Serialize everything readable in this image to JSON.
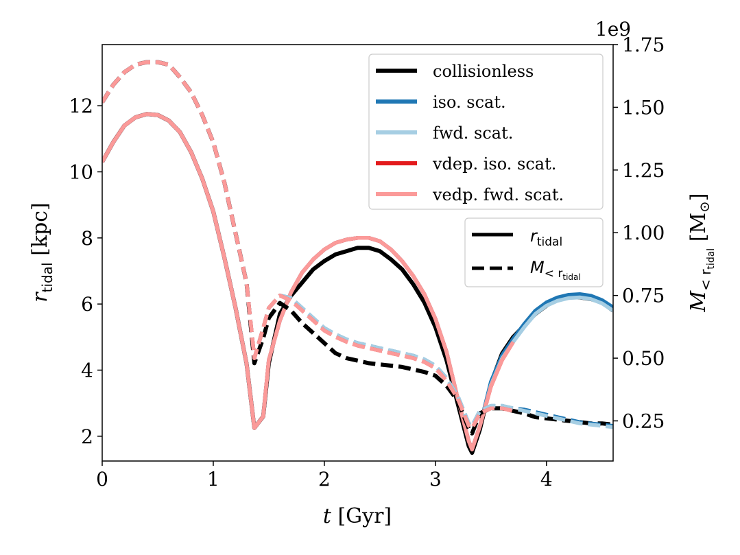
{
  "chart_data": {
    "type": "line",
    "x": [
      0,
      0.1,
      0.2,
      0.3,
      0.4,
      0.5,
      0.6,
      0.7,
      0.8,
      0.9,
      1.0,
      1.1,
      1.2,
      1.3,
      1.37,
      1.45,
      1.5,
      1.6,
      1.7,
      1.8,
      1.9,
      2.0,
      2.1,
      2.2,
      2.3,
      2.4,
      2.5,
      2.6,
      2.7,
      2.8,
      2.9,
      3.0,
      3.1,
      3.2,
      3.3,
      3.33,
      3.4,
      3.5,
      3.6,
      3.7,
      3.8,
      3.9,
      4.0,
      4.1,
      4.2,
      4.3,
      4.4,
      4.5,
      4.6
    ],
    "x_label_var": "t",
    "x_label_unit": "[Gyr]",
    "xlim": [
      0,
      4.6
    ],
    "x_ticks": [
      "0",
      "1",
      "2",
      "3",
      "4"
    ],
    "left_axis": {
      "label_var": "r",
      "label_sub": "tidal",
      "label_unit": "[kpc]",
      "ylim": [
        1.25,
        13.85
      ],
      "ticks": [
        "2",
        "4",
        "6",
        "8",
        "10",
        "12"
      ]
    },
    "right_axis": {
      "label_var": "M",
      "label_sub": "< r",
      "label_subsub": "tidal",
      "label_unit": "[M",
      "label_sun": "⊙",
      "label_close": "]",
      "ylim": [
        0.09,
        1.75
      ],
      "ticks": [
        "0.25",
        "0.50",
        "0.75",
        "1.00",
        "1.25",
        "1.50",
        "1.75"
      ],
      "offset_text": "1e9"
    },
    "series": [
      {
        "name": "collisionless",
        "color": "#000000",
        "axis": "left",
        "style": "solid",
        "values": [
          10.3,
          10.9,
          11.4,
          11.65,
          11.75,
          11.72,
          11.55,
          11.2,
          10.6,
          9.8,
          8.8,
          7.4,
          5.9,
          4.2,
          2.25,
          2.6,
          4.2,
          5.7,
          6.25,
          6.65,
          7.05,
          7.3,
          7.5,
          7.6,
          7.7,
          7.7,
          7.6,
          7.35,
          7.05,
          6.6,
          6.05,
          5.3,
          4.3,
          3.0,
          1.7,
          1.5,
          2.2,
          3.6,
          4.5,
          5.0,
          5.35,
          5.7,
          5.95,
          6.15,
          6.2,
          6.2,
          6.15,
          6.05,
          5.8
        ]
      },
      {
        "name": "iso. scat.",
        "color": "#1f77b4",
        "axis": "left",
        "style": "solid",
        "values": [
          10.3,
          10.9,
          11.4,
          11.65,
          11.75,
          11.72,
          11.55,
          11.2,
          10.6,
          9.8,
          8.8,
          7.4,
          5.9,
          4.2,
          2.25,
          2.6,
          4.3,
          5.5,
          6.35,
          6.95,
          7.35,
          7.65,
          7.85,
          7.95,
          8.0,
          8.0,
          7.9,
          7.65,
          7.3,
          6.85,
          6.3,
          5.55,
          4.55,
          3.15,
          1.85,
          1.6,
          2.3,
          3.65,
          4.45,
          4.95,
          5.4,
          5.8,
          6.05,
          6.2,
          6.28,
          6.3,
          6.25,
          6.12,
          5.9
        ]
      },
      {
        "name": "fwd. scat.",
        "color": "#a6cee3",
        "axis": "left",
        "style": "solid",
        "values": [
          10.3,
          10.9,
          11.4,
          11.65,
          11.75,
          11.72,
          11.55,
          11.2,
          10.6,
          9.8,
          8.8,
          7.4,
          5.9,
          4.2,
          2.25,
          2.6,
          4.3,
          5.5,
          6.35,
          6.95,
          7.35,
          7.65,
          7.85,
          7.95,
          8.0,
          8.0,
          7.9,
          7.65,
          7.3,
          6.85,
          6.3,
          5.55,
          4.55,
          3.15,
          1.85,
          1.6,
          2.3,
          3.55,
          4.35,
          4.85,
          5.3,
          5.7,
          5.95,
          6.1,
          6.18,
          6.2,
          6.15,
          6.02,
          5.8
        ]
      },
      {
        "name": "vdep. iso. scat.",
        "color": "#e31a1c",
        "axis": "left",
        "style": "solid",
        "values": [
          10.3,
          10.9,
          11.4,
          11.65,
          11.75,
          11.72,
          11.55,
          11.2,
          10.6,
          9.8,
          8.8,
          7.4,
          5.9,
          4.2,
          2.25,
          2.6,
          4.3,
          5.5,
          6.35,
          6.95,
          7.35,
          7.65,
          7.85,
          7.95,
          8.0,
          8.0,
          7.9,
          7.65,
          7.3,
          6.85,
          6.3,
          5.55,
          4.55,
          3.15,
          1.85,
          1.6,
          2.3,
          3.5,
          4.3,
          4.85,
          null,
          null,
          null,
          null,
          null,
          null,
          null,
          null,
          null
        ]
      },
      {
        "name": "vedp. fwd. scat.",
        "color": "#fb9a99",
        "axis": "left",
        "style": "solid",
        "values": [
          10.3,
          10.9,
          11.4,
          11.65,
          11.75,
          11.72,
          11.55,
          11.2,
          10.6,
          9.8,
          8.8,
          7.4,
          5.9,
          4.2,
          2.25,
          2.6,
          4.3,
          5.5,
          6.35,
          6.95,
          7.35,
          7.65,
          7.85,
          7.95,
          8.0,
          8.0,
          7.9,
          7.65,
          7.3,
          6.85,
          6.3,
          5.55,
          4.55,
          3.15,
          1.85,
          1.6,
          2.3,
          3.5,
          4.3,
          4.85,
          null,
          null,
          null,
          null,
          null,
          null,
          null,
          null,
          null
        ]
      },
      {
        "name": "collisionless",
        "color": "#000000",
        "axis": "right",
        "style": "dashed",
        "values": [
          1.52,
          1.59,
          1.64,
          1.67,
          1.68,
          1.68,
          1.67,
          1.62,
          1.56,
          1.47,
          1.36,
          1.2,
          1.0,
          0.8,
          0.48,
          0.58,
          0.66,
          0.72,
          0.69,
          0.64,
          0.6,
          0.56,
          0.52,
          0.5,
          0.49,
          0.48,
          0.475,
          0.47,
          0.465,
          0.455,
          0.445,
          0.43,
          0.39,
          0.33,
          0.22,
          0.2,
          0.28,
          0.3,
          0.3,
          0.29,
          0.28,
          0.265,
          0.26,
          0.255,
          0.25,
          0.245,
          0.24,
          0.24,
          0.235
        ]
      },
      {
        "name": "iso. scat.",
        "color": "#1f77b4",
        "axis": "right",
        "style": "dashed",
        "values": [
          1.52,
          1.59,
          1.64,
          1.67,
          1.68,
          1.68,
          1.67,
          1.62,
          1.56,
          1.47,
          1.36,
          1.2,
          1.0,
          0.8,
          0.5,
          0.62,
          0.7,
          0.75,
          0.74,
          0.7,
          0.66,
          0.62,
          0.595,
          0.575,
          0.56,
          0.55,
          0.54,
          0.53,
          0.52,
          0.51,
          0.495,
          0.47,
          0.42,
          0.35,
          0.24,
          0.23,
          0.29,
          0.31,
          0.31,
          0.3,
          0.295,
          0.285,
          0.275,
          0.265,
          0.255,
          0.245,
          0.24,
          0.235,
          0.23
        ]
      },
      {
        "name": "fwd. scat.",
        "color": "#a6cee3",
        "axis": "right",
        "style": "dashed",
        "values": [
          1.52,
          1.59,
          1.64,
          1.67,
          1.68,
          1.68,
          1.67,
          1.62,
          1.56,
          1.47,
          1.36,
          1.2,
          1.0,
          0.8,
          0.5,
          0.62,
          0.7,
          0.75,
          0.74,
          0.7,
          0.66,
          0.62,
          0.595,
          0.575,
          0.56,
          0.55,
          0.54,
          0.53,
          0.52,
          0.51,
          0.495,
          0.47,
          0.42,
          0.35,
          0.24,
          0.23,
          0.29,
          0.31,
          0.31,
          0.3,
          0.29,
          0.28,
          0.27,
          0.26,
          0.25,
          0.24,
          0.235,
          0.23,
          0.225
        ]
      },
      {
        "name": "vdep. iso. scat.",
        "color": "#e31a1c",
        "axis": "right",
        "style": "dashed",
        "values": [
          1.52,
          1.59,
          1.64,
          1.67,
          1.68,
          1.68,
          1.67,
          1.62,
          1.56,
          1.47,
          1.36,
          1.2,
          1.0,
          0.8,
          0.5,
          0.62,
          0.7,
          0.75,
          0.73,
          0.69,
          0.65,
          0.61,
          0.585,
          0.565,
          0.55,
          0.54,
          0.53,
          0.52,
          0.51,
          0.5,
          0.485,
          0.46,
          0.41,
          0.34,
          0.23,
          0.22,
          0.28,
          0.3,
          0.3,
          0.29,
          null,
          null,
          null,
          null,
          null,
          null,
          null,
          null,
          null
        ]
      },
      {
        "name": "vedp. fwd. scat.",
        "color": "#fb9a99",
        "axis": "right",
        "style": "dashed",
        "values": [
          1.52,
          1.59,
          1.64,
          1.67,
          1.68,
          1.68,
          1.67,
          1.62,
          1.56,
          1.47,
          1.36,
          1.2,
          1.0,
          0.8,
          0.5,
          0.62,
          0.7,
          0.75,
          0.73,
          0.69,
          0.65,
          0.61,
          0.585,
          0.565,
          0.55,
          0.54,
          0.53,
          0.52,
          0.51,
          0.5,
          0.485,
          0.46,
          0.41,
          0.34,
          0.23,
          0.22,
          0.28,
          0.3,
          0.3,
          0.29,
          null,
          null,
          null,
          null,
          null,
          null,
          null,
          null,
          null
        ]
      }
    ],
    "legend_models": {
      "placement": "top-right",
      "entries": [
        {
          "label": "collisionless",
          "color": "#000000"
        },
        {
          "label": "iso. scat.",
          "color": "#1f77b4"
        },
        {
          "label": "fwd. scat.",
          "color": "#a6cee3"
        },
        {
          "label": "vdep. iso. scat.",
          "color": "#e31a1c"
        },
        {
          "label": "vedp. fwd. scat.",
          "color": "#fb9a99"
        }
      ]
    },
    "legend_styles": {
      "placement": "right",
      "entries": [
        {
          "style": "solid",
          "var": "r",
          "sub": "tidal"
        },
        {
          "style": "dashed",
          "var": "M",
          "sub": "< r",
          "subsub": "tidal"
        }
      ]
    }
  }
}
